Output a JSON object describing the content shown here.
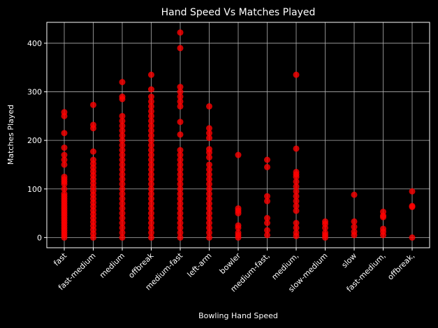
{
  "chart_data": {
    "type": "scatter",
    "title": "Hand Speed Vs Matches Played",
    "x_label": "Bowling Hand Speed",
    "y_label": "Matches Played",
    "color": "#ff0000",
    "grid": true,
    "ylim": [
      -21,
      443
    ],
    "yticks": [
      0,
      100,
      200,
      300,
      400
    ],
    "categories": [
      "fast",
      "fast-medium",
      "medium",
      "offbreak",
      "medium-fast",
      "left-arm",
      "bowler",
      "medium-fast,",
      "medium,",
      "slow-medium",
      "slow",
      "fast-medium,",
      "offbreak,"
    ],
    "values": [
      [
        0,
        5,
        10,
        15,
        20,
        25,
        30,
        35,
        40,
        45,
        50,
        55,
        60,
        65,
        70,
        75,
        80,
        85,
        90,
        100,
        110,
        115,
        120,
        125,
        150,
        160,
        170,
        185,
        215,
        250,
        258
      ],
      [
        0,
        8,
        16,
        24,
        32,
        40,
        48,
        56,
        64,
        72,
        80,
        88,
        96,
        104,
        112,
        120,
        128,
        136,
        144,
        152,
        160,
        177,
        225,
        232,
        273
      ],
      [
        0,
        10,
        20,
        30,
        40,
        50,
        60,
        70,
        80,
        90,
        100,
        110,
        120,
        130,
        140,
        150,
        160,
        170,
        180,
        190,
        200,
        210,
        220,
        230,
        240,
        250,
        285,
        290,
        320
      ],
      [
        0,
        10,
        20,
        30,
        40,
        50,
        60,
        70,
        80,
        90,
        100,
        110,
        120,
        130,
        140,
        150,
        160,
        170,
        180,
        190,
        200,
        210,
        220,
        230,
        240,
        250,
        260,
        270,
        280,
        290,
        305,
        335
      ],
      [
        0,
        10,
        20,
        30,
        40,
        50,
        60,
        70,
        80,
        90,
        100,
        110,
        120,
        130,
        140,
        150,
        160,
        170,
        180,
        212,
        238,
        270,
        280,
        290,
        300,
        310,
        390,
        422
      ],
      [
        0,
        10,
        20,
        30,
        40,
        50,
        60,
        70,
        80,
        90,
        100,
        110,
        120,
        130,
        140,
        150,
        165,
        175,
        182,
        205,
        215,
        225,
        270
      ],
      [
        0,
        5,
        10,
        20,
        25,
        50,
        55,
        60,
        170
      ],
      [
        5,
        15,
        30,
        40,
        75,
        85,
        145,
        160
      ],
      [
        3,
        10,
        20,
        30,
        55,
        65,
        75,
        85,
        95,
        105,
        115,
        125,
        130,
        135,
        183,
        335
      ],
      [
        0,
        5,
        10,
        20,
        28,
        33
      ],
      [
        5,
        12,
        22,
        33,
        88
      ],
      [
        5,
        12,
        18,
        42,
        45,
        53
      ],
      [
        0,
        63,
        65,
        95
      ]
    ]
  }
}
